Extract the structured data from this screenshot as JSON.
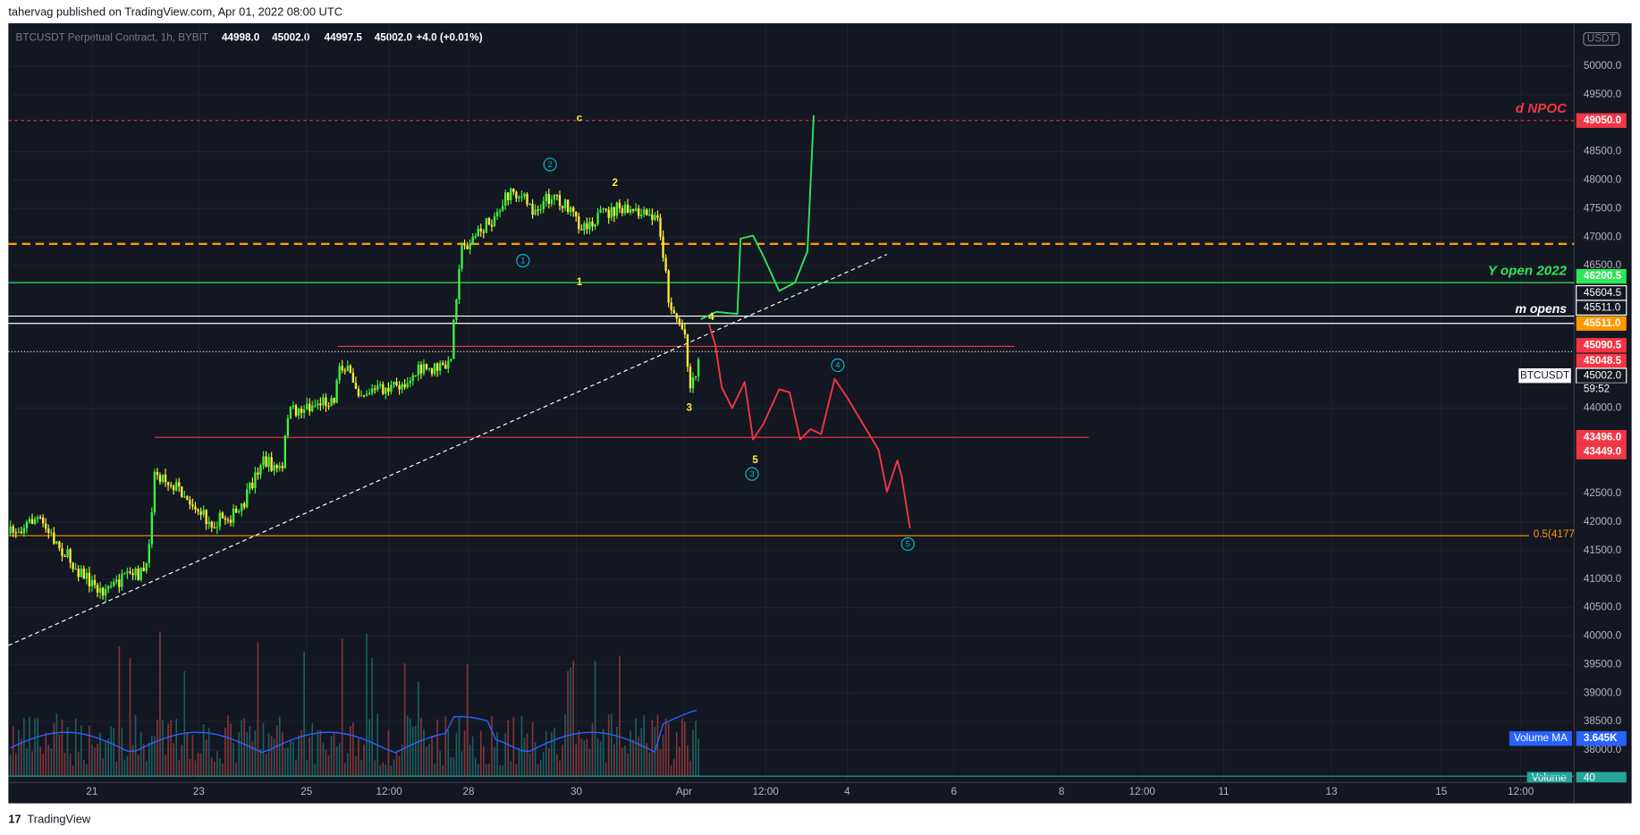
{
  "header": {
    "publisher": "tahervag published on TradingView.com, Apr 01, 2022 08:00 UTC"
  },
  "symbol": {
    "title": "BTCUSDT Perpetual Contract, 1h, BYBIT",
    "open": "44998.0",
    "high": "45002.0",
    "low": "44997.5",
    "close": "45002.0",
    "change": "+4.0 (+0.01%)"
  },
  "price_axis": {
    "currency": "USDT",
    "ticks": [
      "50000.0",
      "49500.0",
      "48500.0",
      "48000.0",
      "47500.0",
      "47000.0",
      "46500.0",
      "44000.0",
      "42500.0",
      "42000.0",
      "41500.0",
      "41000.0",
      "40500.0",
      "40000.0",
      "39500.0",
      "39000.0",
      "38500.0",
      "38000.0"
    ],
    "labels": [
      {
        "text": "49050.0",
        "color": "#f23645"
      },
      {
        "text": "46200.5",
        "color": "#2ee65a"
      },
      {
        "text": "45604.5",
        "color": "#ffffff"
      },
      {
        "text": "45511.0",
        "color": "#ffffff"
      },
      {
        "text": "45511.0",
        "color": "#ff9800"
      },
      {
        "text": "45090.5",
        "color": "#f23645"
      },
      {
        "text": "45048.5",
        "color": "#f23645"
      },
      {
        "text": "45002.0",
        "color": "#ffffff"
      },
      {
        "text": "43496.0",
        "color": "#f23645"
      },
      {
        "text": "43449.0",
        "color": "#f23645"
      }
    ],
    "countdown": "59:52"
  },
  "time_axis": {
    "ticks": [
      "21",
      "23",
      "25",
      "12:00",
      "28",
      "30",
      "Apr",
      "12:00",
      "4",
      "6",
      "8",
      "12:00",
      "11",
      "13",
      "15",
      "12:00"
    ]
  },
  "annotations": {
    "d_npoc": "d NPOC",
    "y_open": "Y open 2022",
    "m_opens": "m opens",
    "fib": "0.5(4177",
    "ticker": "BTCUSDT",
    "wave_labels": [
      "c",
      "2",
      "1",
      "4",
      "3",
      "5"
    ],
    "wave_circles": [
      "1",
      "2",
      "3",
      "4",
      "5"
    ]
  },
  "volume": {
    "ma_name": "Volume MA",
    "ma_value": "3.645K",
    "name": "Volume",
    "value": "40"
  },
  "footer": {
    "brand": "TradingView"
  }
}
